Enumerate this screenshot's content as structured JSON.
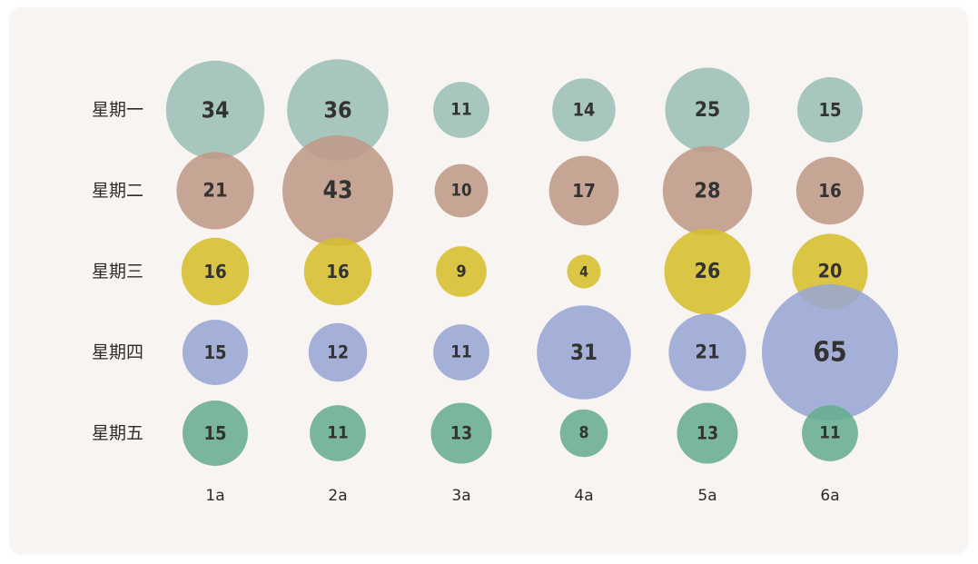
{
  "chart_data": {
    "type": "bubble-grid",
    "title": "",
    "xlabel": "",
    "ylabel": "",
    "categories": [
      "1a",
      "2a",
      "3a",
      "4a",
      "5a",
      "6a"
    ],
    "rows": [
      "星期一",
      "星期二",
      "星期三",
      "星期四",
      "星期五"
    ],
    "series": [
      {
        "name": "星期一",
        "color": "#9bbfb5",
        "values": [
          34,
          36,
          11,
          14,
          25,
          15
        ]
      },
      {
        "name": "星期二",
        "color": "#bf9a87",
        "values": [
          21,
          43,
          10,
          17,
          28,
          16
        ]
      },
      {
        "name": "星期三",
        "color": "#d6be2c",
        "values": [
          16,
          16,
          9,
          4,
          26,
          20
        ]
      },
      {
        "name": "星期四",
        "color": "#97a6d3",
        "values": [
          15,
          12,
          11,
          31,
          21,
          65
        ]
      },
      {
        "name": "星期五",
        "color": "#67ad8f",
        "values": [
          15,
          11,
          13,
          8,
          13,
          11
        ]
      }
    ],
    "grid": false,
    "legend": "none"
  },
  "colors": {
    "background": "#ffffff",
    "card": "#f8f4f1",
    "text": "#2b2b2b"
  }
}
